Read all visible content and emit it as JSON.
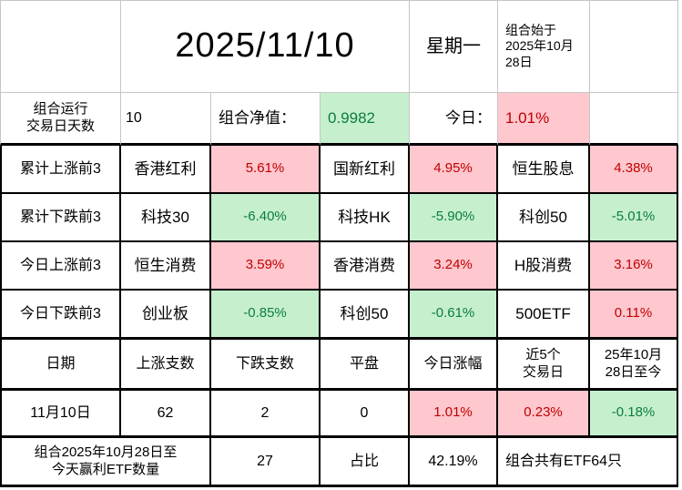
{
  "header": {
    "date": "2025/11/10",
    "weekday": "星期一",
    "start_note": "组合始于\n2025年10月\n28日"
  },
  "summary": {
    "run_days_label": "组合运行\n交易日天数",
    "run_days_value": "10",
    "nav_label": "组合净值：",
    "nav_value": "0.9982",
    "today_label": "今日：",
    "today_value": "1.01%"
  },
  "rank_rows": [
    {
      "label": "累计上涨前3",
      "items": [
        {
          "name": "香港红利",
          "value": "5.61%"
        },
        {
          "name": "国新红利",
          "value": "4.95%"
        },
        {
          "name": "恒生股息",
          "value": "4.38%"
        }
      ]
    },
    {
      "label": "累计下跌前3",
      "items": [
        {
          "name": "科技30",
          "value": "-6.40%"
        },
        {
          "name": "科技HK",
          "value": "-5.90%"
        },
        {
          "name": "科创50",
          "value": "-5.01%"
        }
      ]
    },
    {
      "label": "今日上涨前3",
      "items": [
        {
          "name": "恒生消费",
          "value": "3.59%"
        },
        {
          "name": "香港消费",
          "value": "3.24%"
        },
        {
          "name": "H股消费",
          "value": "3.16%"
        }
      ]
    },
    {
      "label": "今日下跌前3",
      "items": [
        {
          "name": "创业板",
          "value": "-0.85%"
        },
        {
          "name": "科创50",
          "value": "-0.61%"
        },
        {
          "name": "500ETF",
          "value": "0.11%"
        }
      ]
    }
  ],
  "daily_table": {
    "headers": {
      "date": "日期",
      "up_count": "上涨支数",
      "down_count": "下跌支数",
      "flat": "平盘",
      "today_change": "今日涨幅",
      "recent5": "近5个\n交易日",
      "since_start": "25年10月\n28日至今"
    },
    "row": {
      "date": "11月10日",
      "up_count": "62",
      "down_count": "2",
      "flat": "0",
      "today_change": "1.01%",
      "recent5": "0.23%",
      "since_start": "-0.18%"
    }
  },
  "footer": {
    "win_label": "组合2025年10月28日至\n今天赢利ETF数量",
    "win_count": "27",
    "ratio_label": "占比",
    "ratio_value": "42.19%",
    "total_note": "组合共有ETF64只"
  },
  "colors": {
    "gain_bg": "#FFC7CE",
    "gain_text": "#C00000",
    "loss_bg": "#C6EFCE",
    "loss_text": "#0B7E3E",
    "grid_line": "#C6C6C6",
    "table_line": "#000000"
  }
}
